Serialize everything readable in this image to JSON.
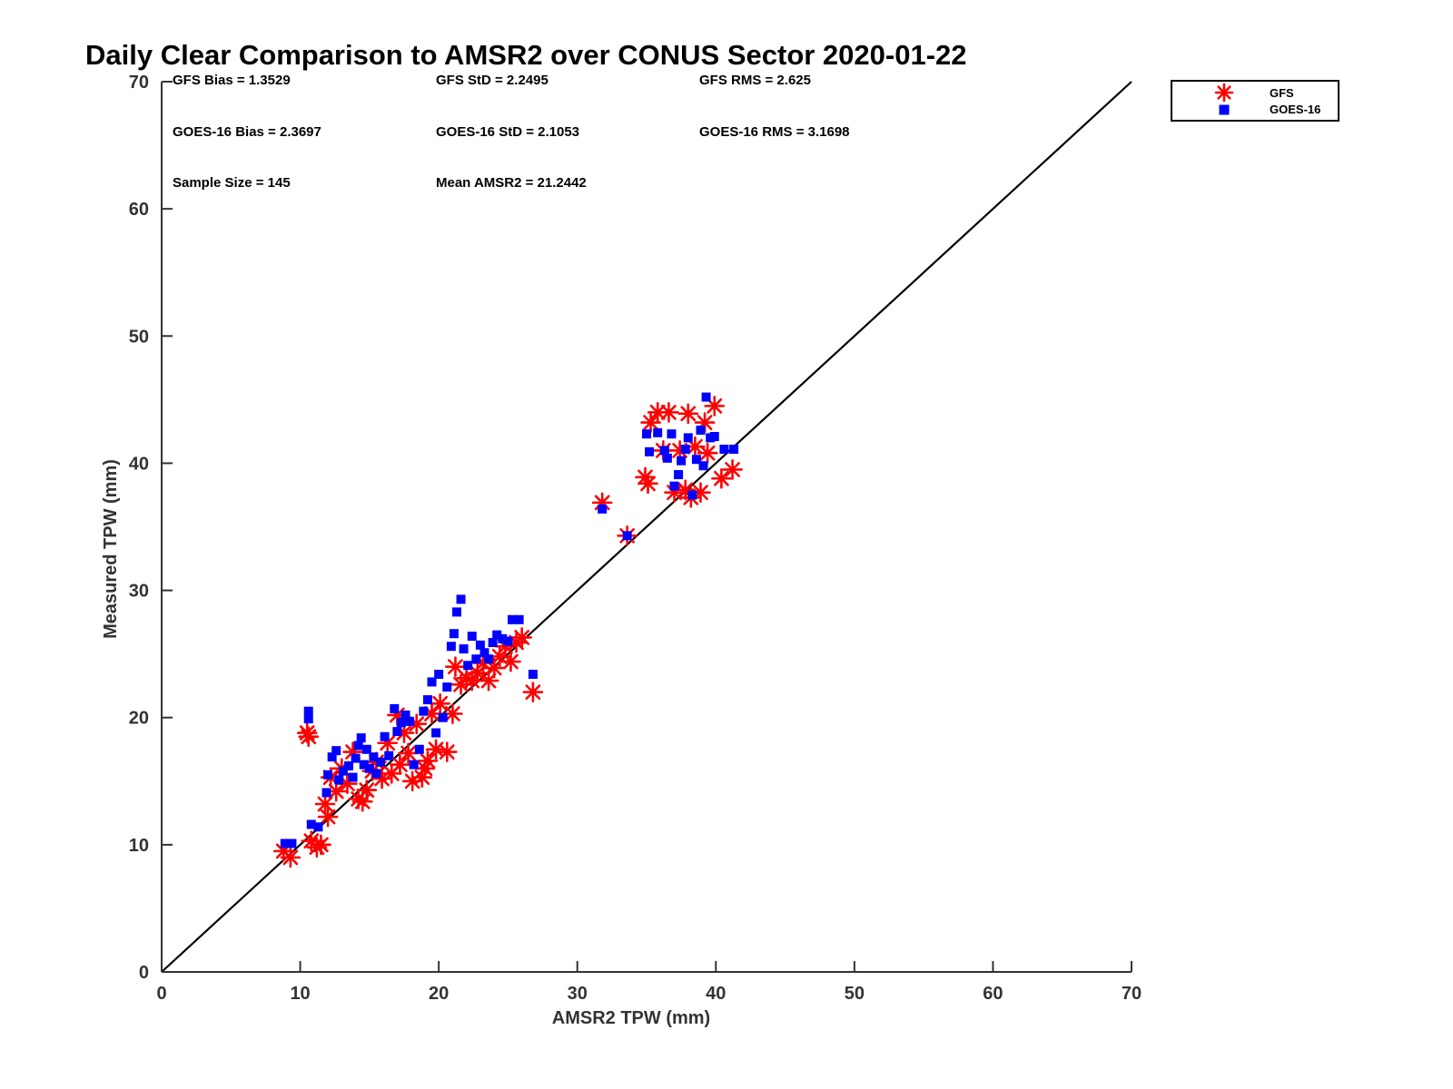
{
  "chart_data": {
    "type": "scatter",
    "title": "Daily Clear Comparison to AMSR2 over CONUS Sector 2020-01-22",
    "xlabel": "AMSR2 TPW (mm)",
    "ylabel": "Measured TPW (mm)",
    "xlim": [
      0,
      70
    ],
    "ylim": [
      0,
      70
    ],
    "xticks": [
      "0",
      "10",
      "20",
      "30",
      "40",
      "50",
      "60",
      "70"
    ],
    "yticks": [
      "0",
      "10",
      "20",
      "30",
      "40",
      "50",
      "60",
      "70"
    ],
    "reference_line": [
      [
        0,
        0
      ],
      [
        70,
        70
      ]
    ],
    "legend_position": "outside-top-right",
    "stats": {
      "gfs_bias": "GFS Bias = 1.3529",
      "gfs_std": "GFS StD = 2.2495",
      "gfs_rms": "GFS RMS = 2.625",
      "goes_bias": "GOES-16 Bias = 2.3697",
      "goes_std": "GOES-16 StD = 2.1053",
      "goes_rms": "GOES-16 RMS = 3.1698",
      "sample_size": "Sample Size = 145",
      "mean_amsr2": "Mean AMSR2 = 21.2442"
    },
    "series": [
      {
        "name": "GFS",
        "marker": "asterisk",
        "color": "#ff0000",
        "points": [
          [
            8.8,
            9.5
          ],
          [
            9.3,
            9.0
          ],
          [
            10.5,
            18.8
          ],
          [
            10.6,
            18.5
          ],
          [
            10.8,
            10.3
          ],
          [
            11.2,
            9.8
          ],
          [
            11.5,
            10.0
          ],
          [
            11.8,
            13.2
          ],
          [
            12.0,
            12.2
          ],
          [
            12.2,
            15.3
          ],
          [
            12.6,
            14.2
          ],
          [
            13.0,
            16.0
          ],
          [
            13.4,
            14.8
          ],
          [
            13.8,
            17.3
          ],
          [
            14.2,
            13.6
          ],
          [
            14.5,
            13.4
          ],
          [
            14.8,
            14.3
          ],
          [
            15.2,
            15.8
          ],
          [
            15.5,
            16.5
          ],
          [
            15.9,
            15.2
          ],
          [
            16.3,
            18.0
          ],
          [
            16.6,
            15.6
          ],
          [
            17.0,
            20.2
          ],
          [
            17.2,
            16.3
          ],
          [
            17.5,
            18.8
          ],
          [
            17.8,
            17.2
          ],
          [
            18.1,
            15.0
          ],
          [
            18.4,
            19.5
          ],
          [
            18.8,
            15.3
          ],
          [
            19.0,
            16.0
          ],
          [
            19.2,
            16.6
          ],
          [
            19.5,
            20.3
          ],
          [
            19.8,
            17.5
          ],
          [
            20.1,
            21.1
          ],
          [
            20.6,
            17.3
          ],
          [
            21.0,
            20.3
          ],
          [
            21.2,
            24.0
          ],
          [
            21.6,
            22.6
          ],
          [
            22.0,
            23.1
          ],
          [
            22.4,
            22.9
          ],
          [
            22.8,
            23.5
          ],
          [
            23.2,
            24.3
          ],
          [
            23.6,
            22.9
          ],
          [
            24.0,
            23.9
          ],
          [
            24.4,
            24.8
          ],
          [
            24.8,
            25.6
          ],
          [
            25.2,
            24.4
          ],
          [
            25.6,
            25.9
          ],
          [
            26.0,
            26.3
          ],
          [
            26.8,
            22.0
          ],
          [
            31.8,
            36.9
          ],
          [
            33.6,
            34.3
          ],
          [
            34.9,
            38.9
          ],
          [
            35.1,
            38.4
          ],
          [
            35.3,
            43.2
          ],
          [
            35.8,
            44.0
          ],
          [
            36.2,
            41.0
          ],
          [
            36.6,
            44.0
          ],
          [
            37.0,
            37.7
          ],
          [
            37.4,
            41.0
          ],
          [
            37.8,
            37.9
          ],
          [
            38.0,
            43.9
          ],
          [
            38.2,
            37.3
          ],
          [
            38.5,
            41.3
          ],
          [
            38.9,
            37.7
          ],
          [
            39.2,
            43.2
          ],
          [
            39.4,
            40.8
          ],
          [
            39.9,
            44.5
          ],
          [
            40.4,
            38.8
          ],
          [
            41.2,
            39.5
          ]
        ]
      },
      {
        "name": "GOES-16",
        "marker": "square",
        "color": "#0000ff",
        "points": [
          [
            8.9,
            10.1
          ],
          [
            9.4,
            10.1
          ],
          [
            10.6,
            20.5
          ],
          [
            10.6,
            19.9
          ],
          [
            10.8,
            11.6
          ],
          [
            11.3,
            11.4
          ],
          [
            11.9,
            14.1
          ],
          [
            12.0,
            15.5
          ],
          [
            12.3,
            16.9
          ],
          [
            12.6,
            17.4
          ],
          [
            12.8,
            15.1
          ],
          [
            13.1,
            15.8
          ],
          [
            13.5,
            16.2
          ],
          [
            13.8,
            15.3
          ],
          [
            14.0,
            16.8
          ],
          [
            14.2,
            17.8
          ],
          [
            14.4,
            18.4
          ],
          [
            14.6,
            16.3
          ],
          [
            14.8,
            17.5
          ],
          [
            15.0,
            16.0
          ],
          [
            15.3,
            16.9
          ],
          [
            15.5,
            15.6
          ],
          [
            15.8,
            16.5
          ],
          [
            16.1,
            18.5
          ],
          [
            16.4,
            17.0
          ],
          [
            16.8,
            20.7
          ],
          [
            17.0,
            18.9
          ],
          [
            17.3,
            19.6
          ],
          [
            17.6,
            20.2
          ],
          [
            17.9,
            19.7
          ],
          [
            18.2,
            16.3
          ],
          [
            18.6,
            17.5
          ],
          [
            18.9,
            20.5
          ],
          [
            19.2,
            21.4
          ],
          [
            19.5,
            22.8
          ],
          [
            19.8,
            18.8
          ],
          [
            20.0,
            23.4
          ],
          [
            20.3,
            20.0
          ],
          [
            20.6,
            22.4
          ],
          [
            20.9,
            25.6
          ],
          [
            21.1,
            26.6
          ],
          [
            21.3,
            28.3
          ],
          [
            21.6,
            29.3
          ],
          [
            21.8,
            25.4
          ],
          [
            22.1,
            24.1
          ],
          [
            22.4,
            26.4
          ],
          [
            22.7,
            24.6
          ],
          [
            23.0,
            25.7
          ],
          [
            23.3,
            25.1
          ],
          [
            23.6,
            24.6
          ],
          [
            23.9,
            25.9
          ],
          [
            24.2,
            26.5
          ],
          [
            24.6,
            26.2
          ],
          [
            25.0,
            26.0
          ],
          [
            25.3,
            27.7
          ],
          [
            25.8,
            27.7
          ],
          [
            26.8,
            23.4
          ],
          [
            31.8,
            36.4
          ],
          [
            33.6,
            34.3
          ],
          [
            35.0,
            42.3
          ],
          [
            35.2,
            40.9
          ],
          [
            35.8,
            42.4
          ],
          [
            36.3,
            41.0
          ],
          [
            36.5,
            40.4
          ],
          [
            36.8,
            42.3
          ],
          [
            37.0,
            38.2
          ],
          [
            37.3,
            39.1
          ],
          [
            37.5,
            40.2
          ],
          [
            37.8,
            41.1
          ],
          [
            38.0,
            42.0
          ],
          [
            38.3,
            37.5
          ],
          [
            38.6,
            40.3
          ],
          [
            38.9,
            42.6
          ],
          [
            39.1,
            39.8
          ],
          [
            39.3,
            45.2
          ],
          [
            39.6,
            42.0
          ],
          [
            39.9,
            42.1
          ],
          [
            40.6,
            41.1
          ],
          [
            41.3,
            41.1
          ]
        ]
      }
    ]
  }
}
